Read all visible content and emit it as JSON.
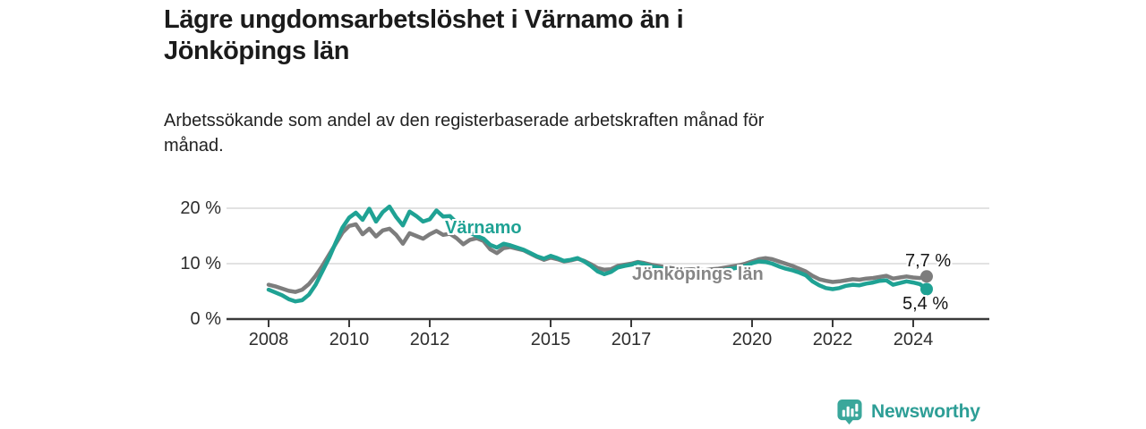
{
  "title": "Lägre ungdomsarbetslöshet i Värnamo än i Jönköpings län",
  "title_lines": [
    "Lägre ungdomsarbetslöshet i Värnamo än i",
    "Jönköpings län"
  ],
  "subtitle": "Arbetssökande som andel av den registerbaserade arbetskraften månad för månad.",
  "subtitle_lines": [
    "Arbetssökande som andel av den registerbaserade arbetskraften månad för",
    "månad."
  ],
  "footer": {
    "brand": "Newsworthy",
    "brand_color": "#2d9e96"
  },
  "colors": {
    "varnamo": "#1fa294",
    "jonkoping": "#7d7d7d",
    "gridline": "#d9d9d9",
    "axis": "#3a3a3a",
    "text": "#2e2e2e"
  },
  "chart_data": {
    "type": "line",
    "unit": "%",
    "x_start": 2008.0,
    "x_step_years": 0.1666667,
    "x_end": 2024.333,
    "ylim": [
      0,
      22
    ],
    "grid": "horizontal",
    "y_ticks": [
      {
        "value": 0,
        "label": "0 %"
      },
      {
        "value": 10,
        "label": "10 %"
      },
      {
        "value": 20,
        "label": "20 %"
      }
    ],
    "x_ticks": [
      {
        "value": 2008,
        "label": "2008"
      },
      {
        "value": 2010,
        "label": "2010"
      },
      {
        "value": 2012,
        "label": "2012"
      },
      {
        "value": 2015,
        "label": "2015"
      },
      {
        "value": 2017,
        "label": "2017"
      },
      {
        "value": 2020,
        "label": "2020"
      },
      {
        "value": 2022,
        "label": "2022"
      },
      {
        "value": 2024,
        "label": "2024"
      }
    ],
    "series": [
      {
        "name": "Jönköpings län",
        "slug": "jonkopings-lan",
        "color": "#7d7d7d",
        "end_value": 7.7,
        "end_label": "7,7 %",
        "values": [
          6.2,
          5.9,
          5.5,
          5.1,
          4.9,
          5.3,
          6.3,
          7.8,
          9.6,
          11.6,
          13.6,
          15.6,
          16.8,
          17.1,
          15.3,
          16.3,
          14.9,
          16.0,
          16.3,
          15.2,
          13.6,
          15.5,
          15.0,
          14.5,
          15.3,
          15.9,
          15.2,
          15.4,
          14.6,
          13.5,
          14.3,
          14.6,
          14.1,
          12.6,
          11.9,
          12.8,
          13.0,
          12.7,
          12.4,
          11.8,
          11.2,
          10.7,
          11.1,
          10.8,
          10.4,
          10.6,
          10.9,
          10.5,
          9.9,
          9.2,
          8.9,
          9.0,
          9.6,
          9.8,
          10.0,
          10.3,
          10.1,
          9.8,
          9.6,
          9.4,
          9.2,
          9.0,
          8.9,
          9.0,
          8.9,
          8.8,
          9.0,
          9.1,
          9.3,
          9.5,
          9.7,
          10.0,
          10.4,
          10.8,
          11.0,
          10.8,
          10.4,
          10.0,
          9.6,
          9.1,
          8.6,
          7.8,
          7.2,
          6.9,
          6.7,
          6.8,
          7.0,
          7.2,
          7.1,
          7.3,
          7.4,
          7.6,
          7.8,
          7.3,
          7.5,
          7.7,
          7.5,
          7.4,
          7.7
        ]
      },
      {
        "name": "Värnamo",
        "slug": "varnamo",
        "color": "#1fa294",
        "end_value": 5.4,
        "end_label": "5,4 %",
        "values": [
          5.3,
          4.8,
          4.3,
          3.6,
          3.2,
          3.4,
          4.4,
          6.2,
          8.6,
          11.0,
          13.8,
          16.5,
          18.3,
          19.2,
          17.9,
          19.9,
          17.6,
          19.3,
          20.3,
          18.4,
          16.9,
          19.4,
          18.6,
          17.6,
          18.0,
          19.6,
          18.5,
          18.6,
          17.4,
          16.1,
          15.6,
          15.0,
          14.5,
          13.4,
          12.9,
          13.6,
          13.3,
          12.9,
          12.5,
          11.9,
          11.3,
          10.9,
          11.4,
          11.0,
          10.5,
          10.7,
          11.0,
          10.4,
          9.6,
          8.6,
          8.1,
          8.5,
          9.3,
          9.6,
          9.8,
          10.2,
          9.9,
          9.5,
          9.3,
          9.0,
          8.8,
          8.6,
          8.5,
          8.7,
          8.5,
          8.4,
          8.6,
          8.7,
          8.9,
          9.1,
          9.3,
          9.6,
          10.1,
          10.4,
          10.3,
          10.0,
          9.5,
          9.1,
          8.8,
          8.4,
          7.9,
          6.8,
          6.1,
          5.6,
          5.4,
          5.6,
          6.0,
          6.2,
          6.1,
          6.4,
          6.6,
          6.9,
          7.0,
          6.2,
          6.5,
          6.8,
          6.6,
          6.3,
          5.4
        ]
      }
    ]
  }
}
